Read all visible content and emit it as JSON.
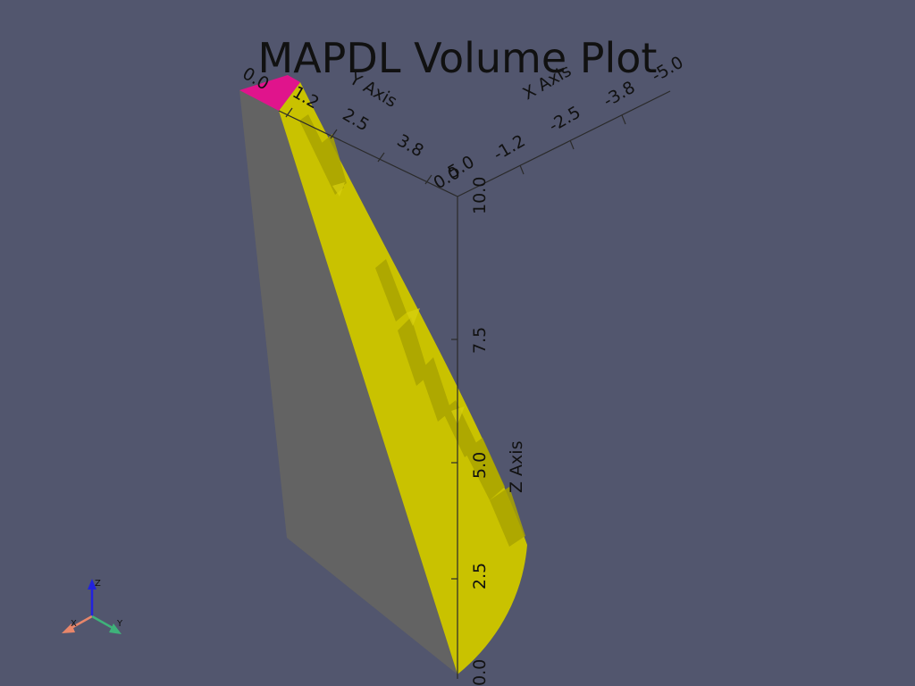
{
  "title": "MAPDL Volume Plot",
  "axes": {
    "x": {
      "title": "X Axis",
      "ticks": [
        "0.0",
        "-1.2",
        "-2.5",
        "-3.8",
        "-5.0"
      ]
    },
    "y": {
      "title": "Y Axis",
      "ticks": [
        "0.0",
        "1.2",
        "2.5",
        "3.8",
        "5.0"
      ]
    },
    "z": {
      "title": "Z Axis",
      "ticks": [
        "0.0",
        "2.5",
        "5.0",
        "7.5",
        "10.0"
      ]
    }
  },
  "orientation_widget": {
    "x": "X",
    "y": "Y",
    "z": "Z"
  },
  "colors": {
    "background": "#52566e",
    "face_gray": "#636363",
    "face_yellow": "#c9c200",
    "face_yellow_dark": "#a9a300",
    "face_magenta": "#e0148c",
    "axis_x": "#e8866a",
    "axis_y": "#3fb27a",
    "axis_z": "#2222dd"
  }
}
